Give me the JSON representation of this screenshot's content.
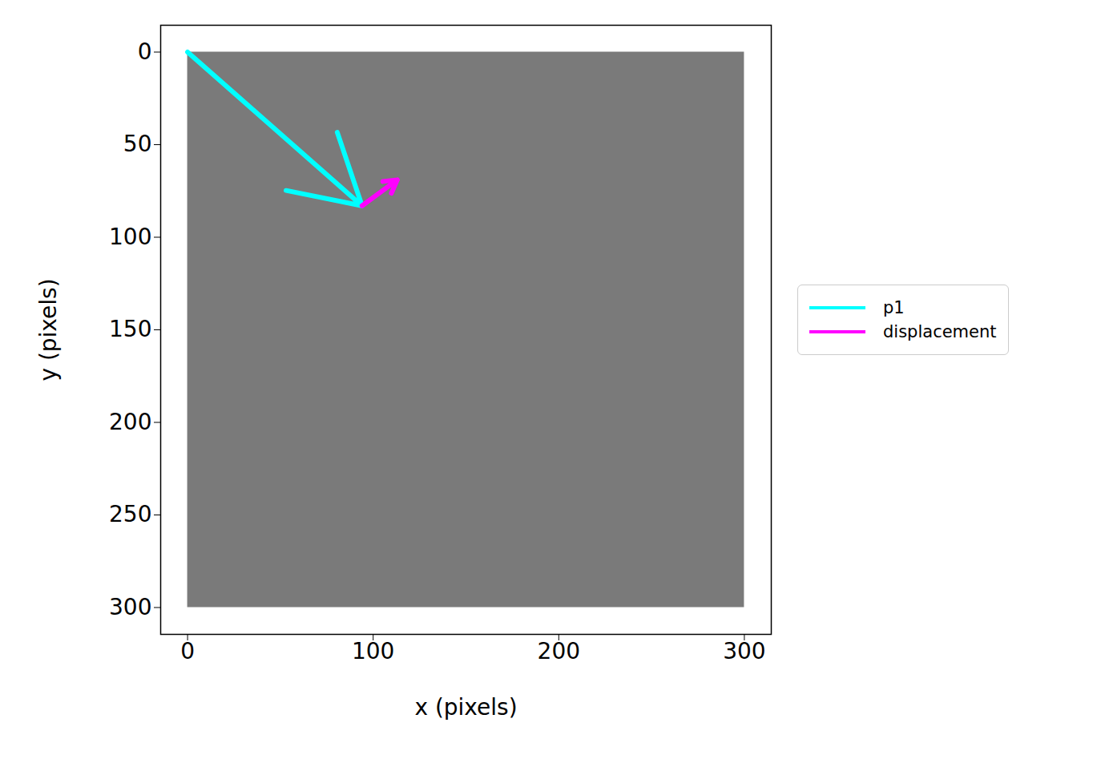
{
  "chart_data": {
    "type": "quiver",
    "xlabel": "x (pixels)",
    "ylabel": "y (pixels)",
    "image_extent": {
      "x": [
        0,
        300
      ],
      "y": [
        0,
        300
      ]
    },
    "series": [
      {
        "name": "p1",
        "color": "#00ffff",
        "x0": 0,
        "y0": 0,
        "x1": 94,
        "y1": 83
      },
      {
        "name": "displacement",
        "color": "#ff00ff",
        "x0": 94,
        "y0": 83,
        "x1": 113,
        "y1": 69
      }
    ],
    "xlim": [
      -14.5,
      314.5
    ],
    "xticks": [
      0,
      100,
      200,
      300
    ],
    "ylim": [
      314.5,
      -14.5
    ],
    "yticks": [
      0,
      50,
      100,
      150,
      200,
      250,
      300
    ],
    "legend": "right"
  }
}
